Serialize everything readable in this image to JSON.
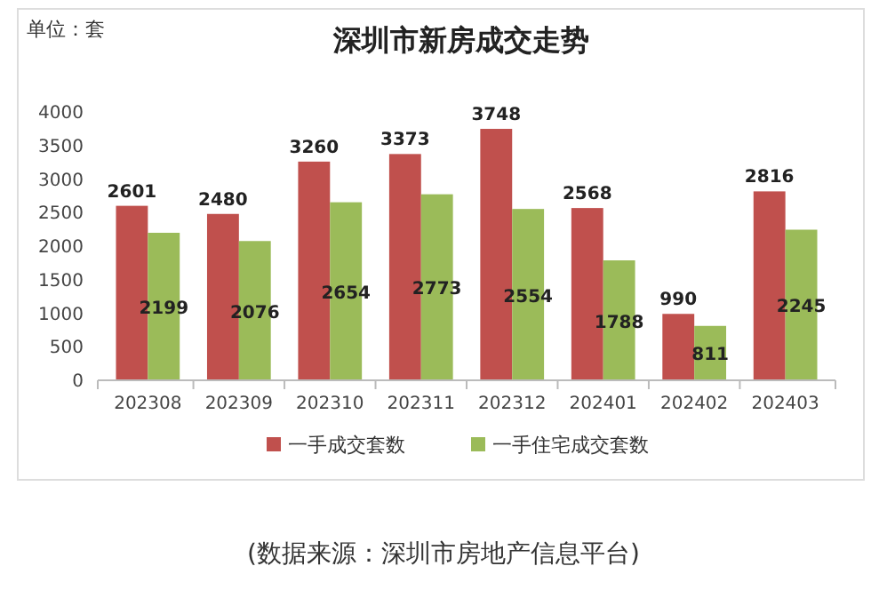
{
  "chart_data": {
    "type": "bar",
    "title": "深圳市新房成交走势",
    "categories": [
      "202308",
      "202309",
      "202310",
      "202311",
      "202312",
      "202401",
      "202402",
      "202403"
    ],
    "series": [
      {
        "name": "一手成交套数",
        "color": "#c0504d",
        "values": [
          2601,
          2480,
          3260,
          3373,
          3748,
          2568,
          990,
          2816
        ]
      },
      {
        "name": "一手住宅成交套数",
        "color": "#9bbb59",
        "values": [
          2199,
          2076,
          2654,
          2773,
          2554,
          1788,
          811,
          2245
        ]
      }
    ],
    "ylim": [
      0,
      4000
    ],
    "yticks": [
      0,
      500,
      1000,
      1500,
      2000,
      2500,
      3000,
      3500,
      4000
    ],
    "grid": false,
    "legend": "bottom",
    "data_labels": true,
    "annotations": [
      "单位：套",
      "(数据来源：深圳市房地产信息平台)"
    ]
  }
}
